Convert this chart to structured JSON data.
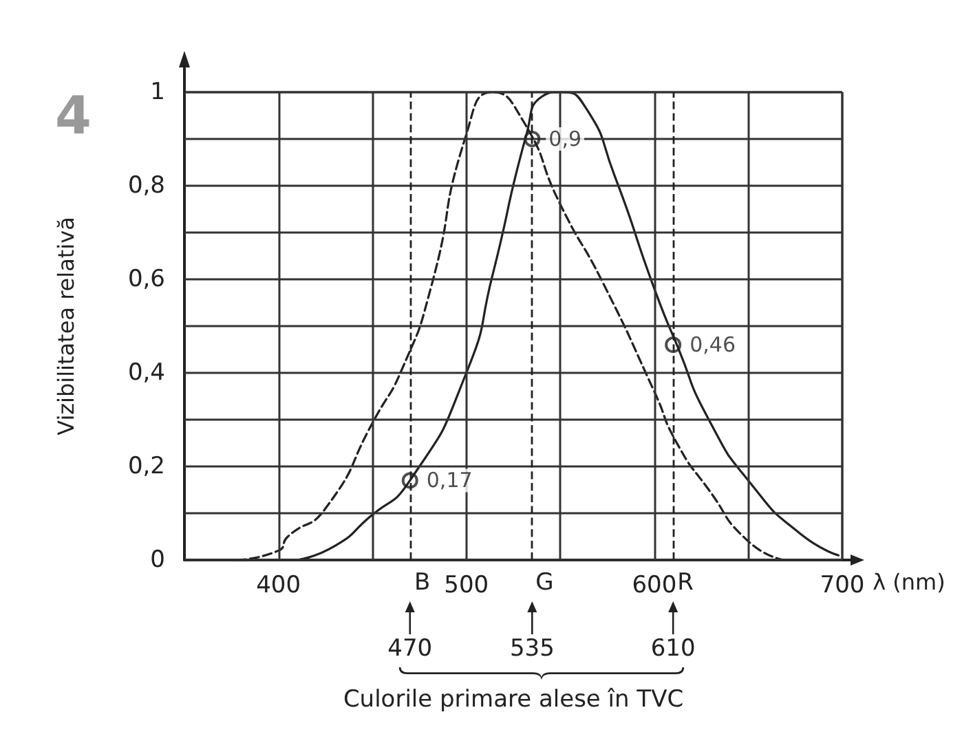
{
  "chart_data": {
    "type": "line",
    "xlabel": "λ (nm)",
    "ylabel": "Vizibilitatea relativă",
    "xlim": [
      350,
      700
    ],
    "xticks": [
      400,
      {
        "value": 450,
        "label": null
      },
      500,
      {
        "value": 550,
        "label": null
      },
      600,
      {
        "value": 650,
        "label": null
      },
      700
    ],
    "ylim": [
      0,
      1
    ],
    "yticks": [
      0,
      {
        "value": 0.1,
        "label": null
      },
      {
        "value": 0.2,
        "label": "0,2"
      },
      {
        "value": 0.3,
        "label": null
      },
      {
        "value": 0.4,
        "label": "0,4"
      },
      {
        "value": 0.5,
        "label": null
      },
      {
        "value": 0.6,
        "label": "0,6"
      },
      {
        "value": 0.7,
        "label": null
      },
      {
        "value": 0.8,
        "label": "0,8"
      },
      {
        "value": 0.9,
        "label": null
      },
      1
    ],
    "grid": true,
    "series": [
      {
        "color": "#222222",
        "line_style": "dashed",
        "marker": "none",
        "x": [
          378,
          400,
          405,
          425,
          451,
          466,
          481,
          500,
          514,
          530,
          550,
          573,
          600,
          612,
          629,
          650,
          669
        ],
        "values": [
          0,
          0.02,
          0.05,
          0.11,
          0.3,
          0.41,
          0.58,
          0.91,
          1,
          0.94,
          0.76,
          0.59,
          0.36,
          0.25,
          0.15,
          0.04,
          0
        ]
      },
      {
        "color": "#222222",
        "line_style": "solid",
        "marker": "none",
        "x": [
          410,
          430,
          448,
          470,
          500,
          514,
          532,
          540,
          550,
          563,
          579,
          600,
          612,
          629,
          652,
          678,
          698
        ],
        "values": [
          0,
          0.03,
          0.09,
          0.17,
          0.4,
          0.61,
          0.91,
          0.99,
          1,
          0.97,
          0.82,
          0.58,
          0.46,
          0.3,
          0.16,
          0.055,
          0.01
        ]
      },
      {
        "type": "scatter",
        "color": "#222222",
        "marker": "circle",
        "x": [
          470,
          535,
          610
        ],
        "values": [
          0.17,
          0.9,
          0.46
        ],
        "value_labels": [
          "0,17",
          "0,9",
          "0,46"
        ]
      }
    ],
    "ref_lines": [
      {
        "axis": "x",
        "value": 470,
        "label": "B",
        "line_style": "dashed"
      },
      {
        "axis": "x",
        "value": 535,
        "label": "G",
        "line_style": "dashed"
      },
      {
        "axis": "x",
        "value": 610,
        "label": "R",
        "line_style": "dashed"
      }
    ],
    "annotations": [
      "4",
      "Culorile primare alese în TVC",
      "470",
      "535",
      "610"
    ]
  }
}
